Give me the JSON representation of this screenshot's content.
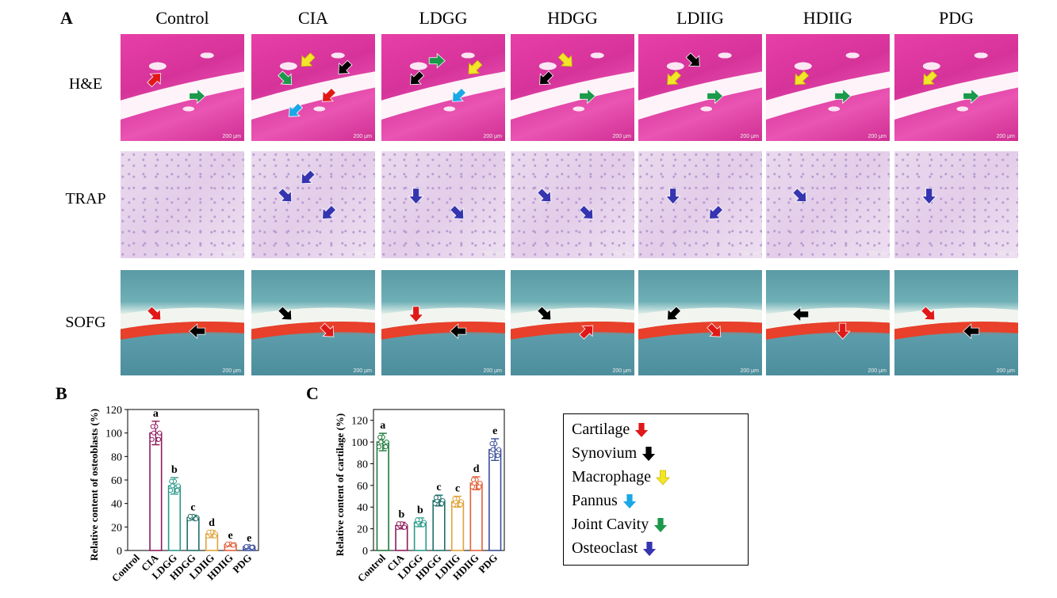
{
  "panel_labels": {
    "a": "A",
    "b": "B",
    "c": "C"
  },
  "columns": [
    "Control",
    "CIA",
    "LDGG",
    "HDGG",
    "LDIIG",
    "HDIIG",
    "PDG"
  ],
  "rows": [
    {
      "label": "H&E",
      "stain": "he"
    },
    {
      "label": "TRAP",
      "stain": "trap"
    },
    {
      "label": "SOFG",
      "stain": "sofg"
    }
  ],
  "scale_text": "200 μm",
  "colors": {
    "Control": "#1f7a3a",
    "CIA": "#8e1a5c",
    "LDGG": "#2a9a8a",
    "HDGG": "#1f6f6a",
    "LDIIG": "#e0a33a",
    "HDIIG": "#e0603a",
    "PDG": "#3a4e9a",
    "cartilage_arrow": "#e01818",
    "synovium_arrow": "#000000",
    "macrophage_arrow": "#f2e52a",
    "pannus_arrow": "#1aa8e6",
    "joint_cavity_arrow": "#1a9a4a",
    "osteoclast_arrow": "#3535b0"
  },
  "image_arrows": [
    [
      [
        [
          "cartilage",
          "up-right"
        ],
        [
          "joint_cavity",
          "right"
        ]
      ],
      [
        [
          "joint_cavity",
          "down-right"
        ],
        [
          "cartilage",
          "down-left"
        ],
        [
          "macrophage",
          "down-left"
        ],
        [
          "synovium",
          "down-left"
        ],
        [
          "pannus",
          "down-left"
        ]
      ],
      [
        [
          "synovium",
          "down-left"
        ],
        [
          "pannus",
          "down-left"
        ],
        [
          "joint_cavity",
          "right"
        ],
        [
          "macrophage",
          "down-left"
        ]
      ],
      [
        [
          "synovium",
          "down-left"
        ],
        [
          "joint_cavity",
          "right"
        ],
        [
          "macrophage",
          "down-right"
        ]
      ],
      [
        [
          "macrophage",
          "down-left"
        ],
        [
          "joint_cavity",
          "right"
        ],
        [
          "synovium",
          "down-right"
        ]
      ],
      [
        [
          "macrophage",
          "down-left"
        ],
        [
          "joint_cavity",
          "right"
        ]
      ],
      [
        [
          "macrophage",
          "down-left"
        ],
        [
          "joint_cavity",
          "right"
        ]
      ]
    ],
    [
      [],
      [
        [
          "osteoclast",
          "down-right"
        ],
        [
          "osteoclast",
          "down-left"
        ],
        [
          "osteoclast",
          "down-left"
        ]
      ],
      [
        [
          "osteoclast",
          "down"
        ],
        [
          "osteoclast",
          "down-right"
        ]
      ],
      [
        [
          "osteoclast",
          "down-right"
        ],
        [
          "osteoclast",
          "down-right"
        ]
      ],
      [
        [
          "osteoclast",
          "down"
        ],
        [
          "osteoclast",
          "down-left"
        ]
      ],
      [
        [
          "osteoclast",
          "down-right"
        ]
      ],
      [
        [
          "osteoclast",
          "down"
        ]
      ]
    ],
    [
      [
        [
          "cartilage",
          "down-right"
        ],
        [
          "synovium",
          "left"
        ]
      ],
      [
        [
          "synovium",
          "down-right"
        ],
        [
          "cartilage",
          "down-right"
        ]
      ],
      [
        [
          "cartilage",
          "down"
        ],
        [
          "synovium",
          "left"
        ]
      ],
      [
        [
          "synovium",
          "down-right"
        ],
        [
          "cartilage",
          "up-right"
        ]
      ],
      [
        [
          "synovium",
          "down-left"
        ],
        [
          "cartilage",
          "down-right"
        ]
      ],
      [
        [
          "synovium",
          "left"
        ],
        [
          "cartilage",
          "down"
        ]
      ],
      [
        [
          "cartilage",
          "down-right"
        ],
        [
          "synovium",
          "left"
        ]
      ]
    ]
  ],
  "chart_data": [
    {
      "panel": "B",
      "type": "bar",
      "categories": [
        "Control",
        "CIA",
        "LDGG",
        "HDGG",
        "LDIIG",
        "HDIIG",
        "PDG"
      ],
      "values": [
        0,
        100,
        55,
        28,
        14,
        5,
        3
      ],
      "errors": [
        0,
        10,
        7,
        2,
        3,
        1,
        0.6
      ],
      "letters": [
        "",
        "a",
        "b",
        "c",
        "d",
        "e",
        "e"
      ],
      "ylabel": "Relative content of osteoblasts (%)",
      "xlabel": "",
      "ylim": [
        0,
        120
      ],
      "yticks": [
        0,
        20,
        40,
        60,
        80,
        100,
        120
      ]
    },
    {
      "panel": "C",
      "type": "bar",
      "categories": [
        "Control",
        "CIA",
        "LDGG",
        "HDGG",
        "LDIIG",
        "HDIIG",
        "PDG"
      ],
      "values": [
        100,
        23,
        26,
        46,
        45,
        62,
        93
      ],
      "errors": [
        8,
        3,
        4,
        5,
        5,
        6,
        10
      ],
      "letters": [
        "a",
        "b",
        "b",
        "c",
        "c",
        "d",
        "e"
      ],
      "ylabel": "Relative content of cartilage (%)",
      "xlabel": "",
      "ylim": [
        0,
        130
      ],
      "yticks": [
        0,
        20,
        40,
        60,
        80,
        100,
        120
      ]
    }
  ],
  "legend": [
    {
      "label": "Cartilage",
      "arrow": "cartilage_arrow"
    },
    {
      "label": "Synovium",
      "arrow": "synovium_arrow"
    },
    {
      "label": "Macrophage",
      "arrow": "macrophage_arrow"
    },
    {
      "label": "Pannus",
      "arrow": "pannus_arrow"
    },
    {
      "label": "Joint Cavity",
      "arrow": "joint_cavity_arrow"
    },
    {
      "label": "Osteoclast",
      "arrow": "osteoclast_arrow"
    }
  ]
}
